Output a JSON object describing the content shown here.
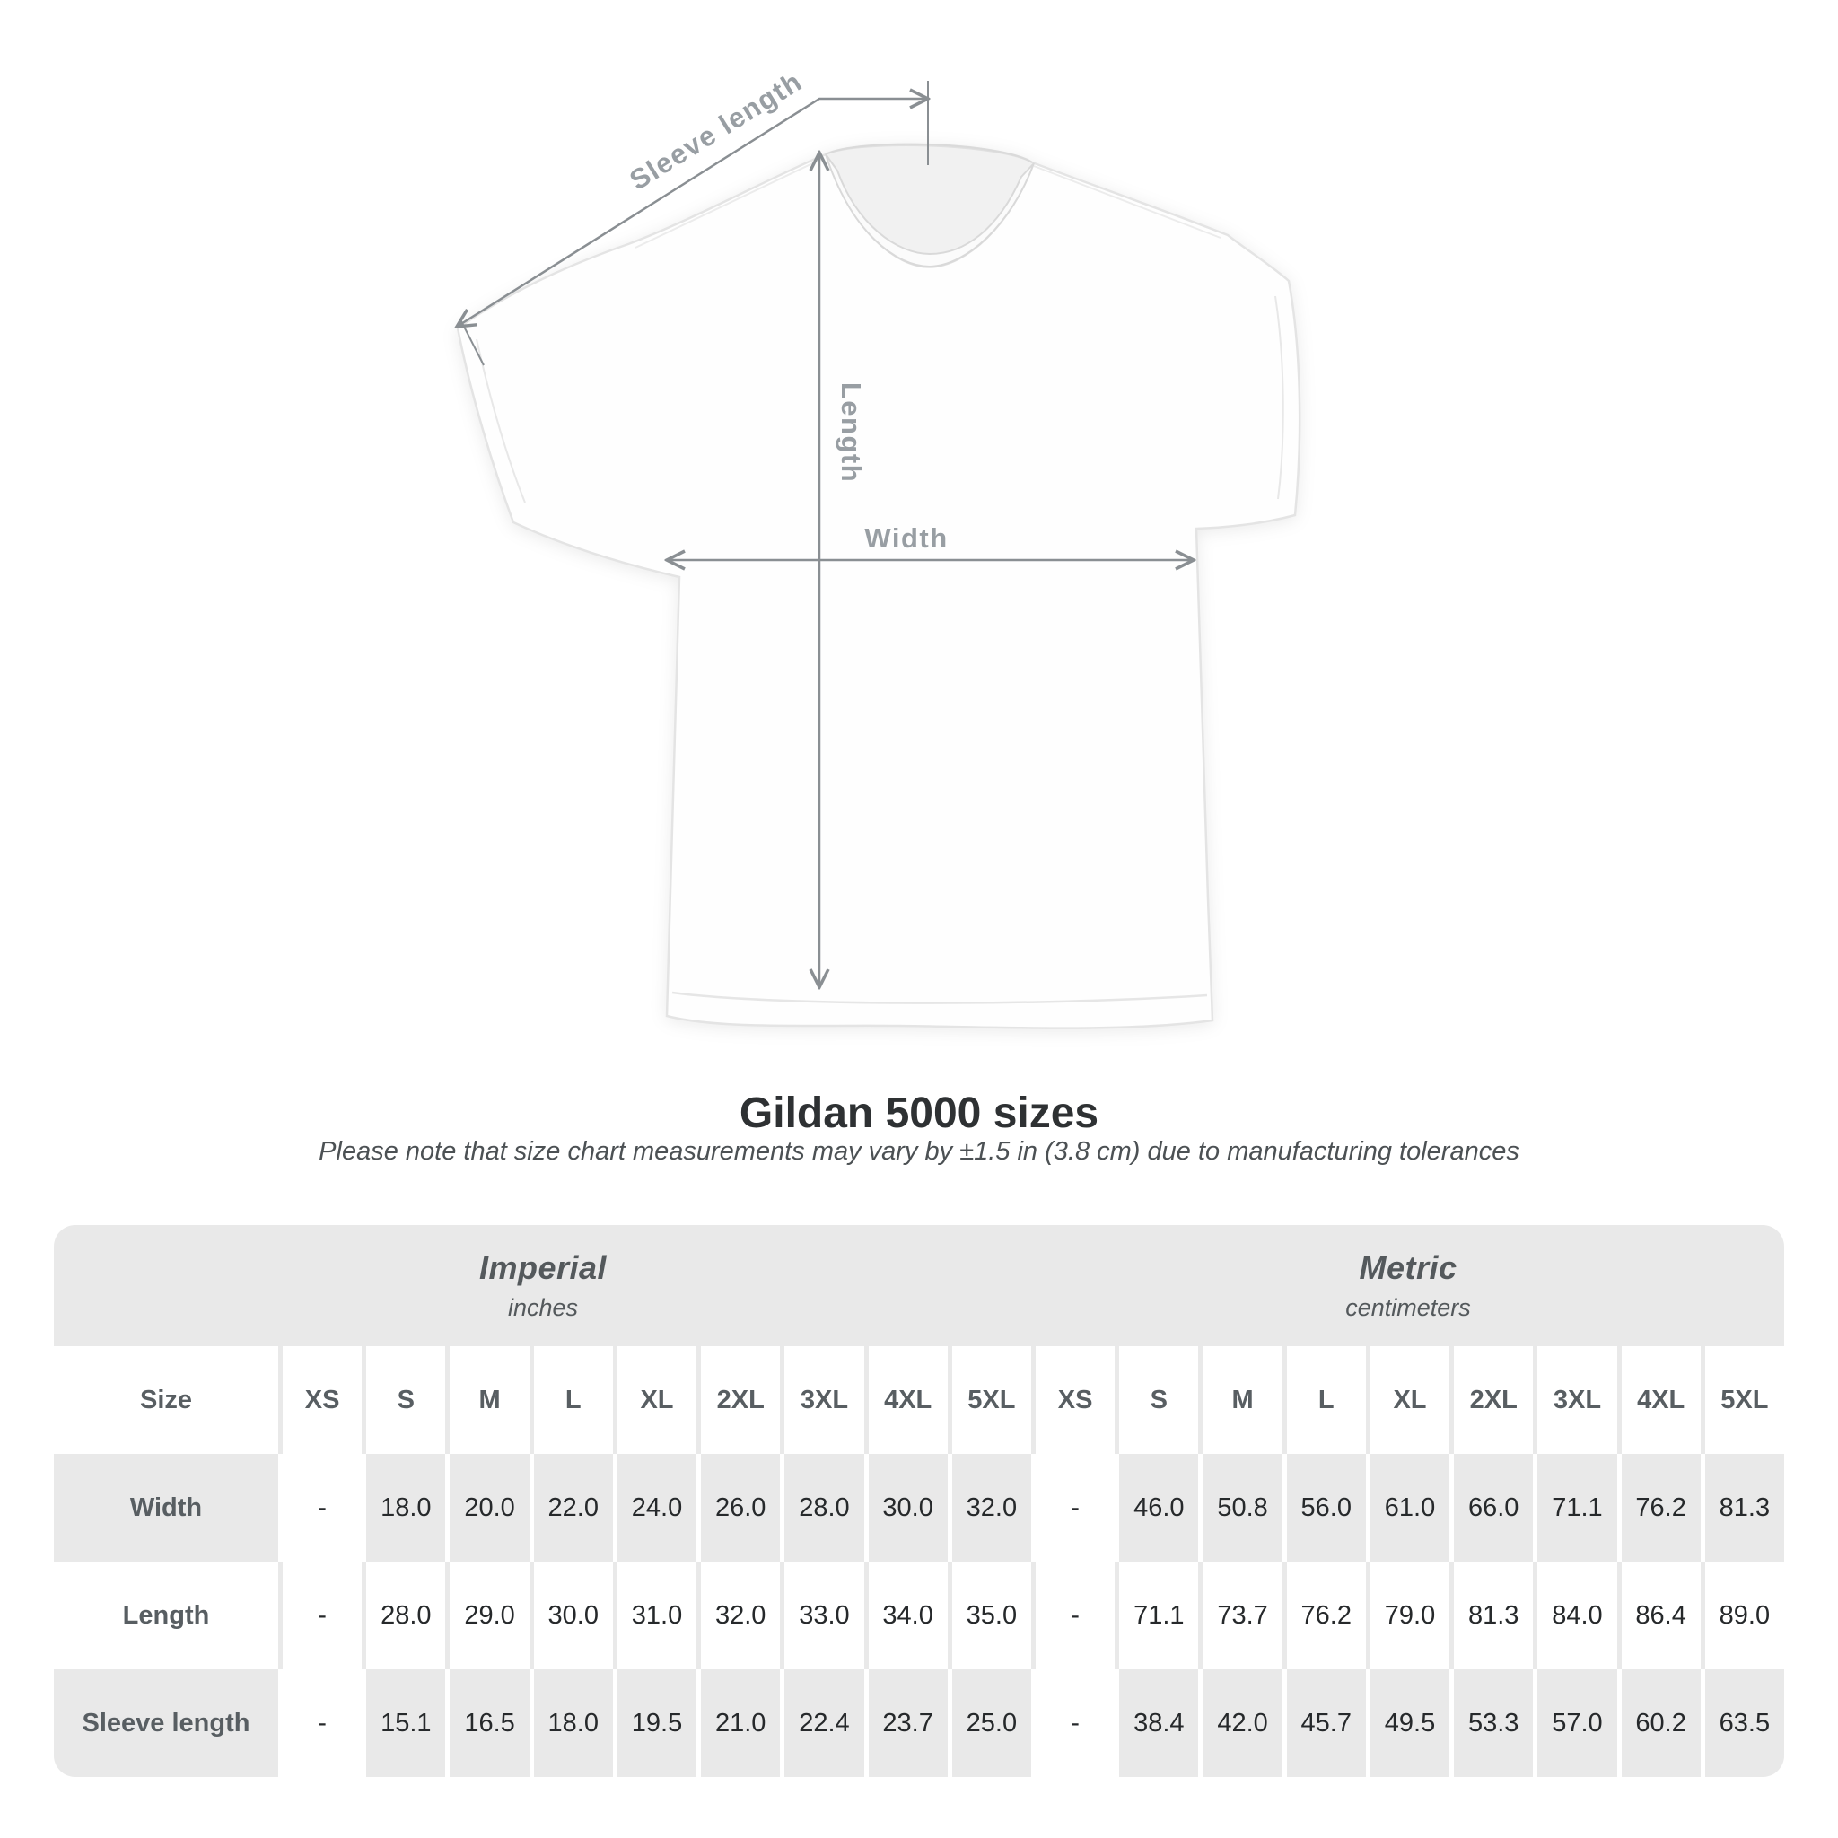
{
  "figure": {
    "sleeve_length_label": "Sleeve length",
    "length_label": "Length",
    "width_label": "Width"
  },
  "title": "Gildan 5000 sizes",
  "subtitle": "Please note that size chart measurements may vary by ±1.5 in (3.8 cm) due to manufacturing tolerances",
  "table": {
    "size_header": "Size",
    "groups": [
      {
        "label": "Imperial",
        "sublabel": "inches"
      },
      {
        "label": "Metric",
        "sublabel": "centimeters"
      }
    ],
    "sizes": [
      "XS",
      "S",
      "M",
      "L",
      "XL",
      "2XL",
      "3XL",
      "4XL",
      "5XL"
    ],
    "rows": [
      {
        "label": "Width",
        "imperial": [
          "-",
          "18.0",
          "20.0",
          "22.0",
          "24.0",
          "26.0",
          "28.0",
          "30.0",
          "32.0"
        ],
        "metric": [
          "-",
          "46.0",
          "50.8",
          "56.0",
          "61.0",
          "66.0",
          "71.1",
          "76.2",
          "81.3"
        ]
      },
      {
        "label": "Length",
        "imperial": [
          "-",
          "28.0",
          "29.0",
          "30.0",
          "31.0",
          "32.0",
          "33.0",
          "34.0",
          "35.0"
        ],
        "metric": [
          "-",
          "71.1",
          "73.7",
          "76.2",
          "79.0",
          "81.3",
          "84.0",
          "86.4",
          "89.0"
        ]
      },
      {
        "label": "Sleeve length",
        "imperial": [
          "-",
          "15.1",
          "16.5",
          "18.0",
          "19.5",
          "21.0",
          "22.4",
          "23.7",
          "25.0"
        ],
        "metric": [
          "-",
          "38.4",
          "42.0",
          "45.7",
          "49.5",
          "53.3",
          "57.0",
          "60.2",
          "63.5"
        ]
      }
    ]
  },
  "colors": {
    "table_gray": "#e9e9e9",
    "arrow_gray": "#8a8f93",
    "figure_label_gray": "#989ea3",
    "heading_gray": "#585e62",
    "value_dark": "#26292b"
  },
  "chart_data": {
    "type": "table",
    "title": "Gildan 5000 sizes",
    "note": "Please note that size chart measurements may vary by ±1.5 in (3.8 cm) due to manufacturing tolerances",
    "unit_groups": [
      {
        "name": "Imperial",
        "unit": "inches"
      },
      {
        "name": "Metric",
        "unit": "centimeters"
      }
    ],
    "sizes": [
      "XS",
      "S",
      "M",
      "L",
      "XL",
      "2XL",
      "3XL",
      "4XL",
      "5XL"
    ],
    "measurements": [
      {
        "name": "Width",
        "imperial_inches": [
          null,
          18.0,
          20.0,
          22.0,
          24.0,
          26.0,
          28.0,
          30.0,
          32.0
        ],
        "metric_cm": [
          null,
          46.0,
          50.8,
          56.0,
          61.0,
          66.0,
          71.1,
          76.2,
          81.3
        ]
      },
      {
        "name": "Length",
        "imperial_inches": [
          null,
          28.0,
          29.0,
          30.0,
          31.0,
          32.0,
          33.0,
          34.0,
          35.0
        ],
        "metric_cm": [
          null,
          71.1,
          73.7,
          76.2,
          79.0,
          81.3,
          84.0,
          86.4,
          89.0
        ]
      },
      {
        "name": "Sleeve length",
        "imperial_inches": [
          null,
          15.1,
          16.5,
          18.0,
          19.5,
          21.0,
          22.4,
          23.7,
          25.0
        ],
        "metric_cm": [
          null,
          38.4,
          42.0,
          45.7,
          49.5,
          53.3,
          57.0,
          60.2,
          63.5
        ]
      }
    ]
  }
}
